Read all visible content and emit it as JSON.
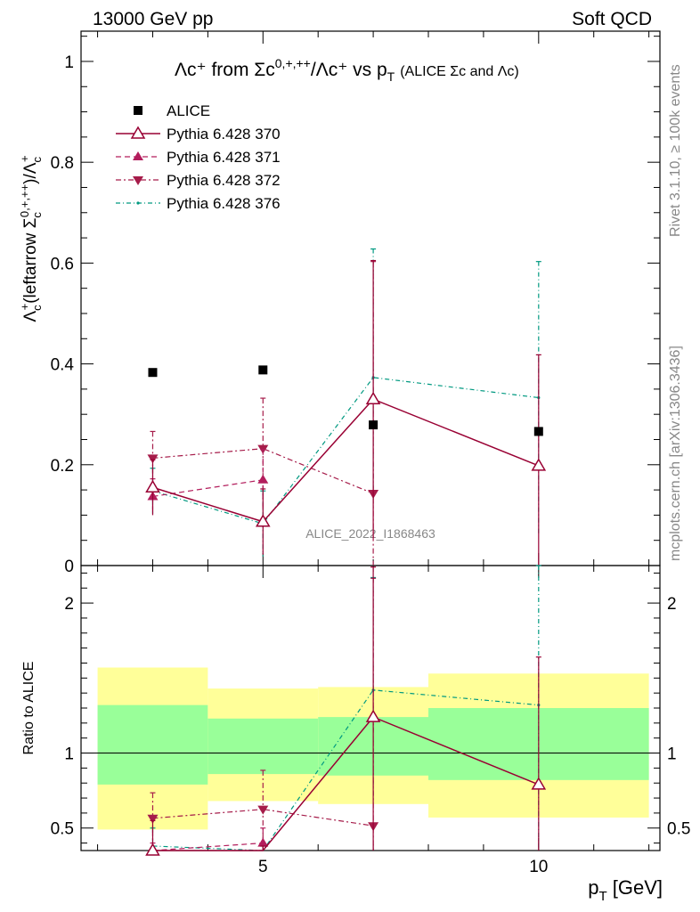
{
  "header": {
    "left": "13000 GeV pp",
    "right": "Soft QCD"
  },
  "side_text": {
    "rivet": "Rivet 3.1.10, ≥ 100k events",
    "mcplots": "mcplots.cern.ch [arXiv:1306.3436]"
  },
  "watermark": "ALICE_2022_I1868463",
  "colors": {
    "alice": "#000000",
    "p370": "#990033",
    "p371": "#b31d5c",
    "p372": "#a61c4a",
    "p376": "#009980",
    "band_inner": "#99ff99",
    "band_outer": "#ffff99"
  },
  "chart_data": [
    {
      "type": "line",
      "title": "Λc⁺ from Σc^{0,+,++}/Λc⁺ vs p_T (ALICE Σc and Λc)",
      "title_parts": {
        "main": "Λc⁺ from Σc",
        "sup": "0,+,++",
        "mid": "/Λc⁺ vs p",
        "sub": "T",
        "small": "(ALICE Σc and Λc)"
      },
      "xlabel": "p_T [GeV]",
      "xlabel_parts": {
        "main": "p",
        "sub": "T",
        "rest": " [GeV]"
      },
      "ylabel": "Λc⁺(leftarrow Σc^{0,+,++})/Λc⁺",
      "ylabel_parts": {
        "a": "Λ",
        "a_sub": "c",
        "a_sup": "+",
        "b": "(leftarrow Σ",
        "b_sub": "c",
        "b_sup": "0,+,++",
        "c": ")/Λ",
        "c_sub": "c",
        "c_sup": "+"
      },
      "xlim": [
        1.7,
        12.2
      ],
      "ylim": [
        0,
        1.06
      ],
      "yticks": [
        0,
        0.2,
        0.4,
        0.6,
        0.8,
        1
      ],
      "ytick_labels": [
        "0",
        "0.2",
        "0.4",
        "0.6",
        "0.8",
        "1"
      ],
      "xticks": [
        5,
        10
      ],
      "grid": false,
      "legend": "top-left",
      "legend_labels": [
        "ALICE",
        "Pythia 6.428 370",
        "Pythia 6.428 371",
        "Pythia 6.428 372",
        "Pythia 6.428 376"
      ],
      "series": [
        {
          "name": "ALICE",
          "x": [
            3,
            5,
            7,
            10
          ],
          "y": [
            0.383,
            0.388,
            0.279,
            0.266
          ],
          "err": [
            0,
            0,
            0,
            0
          ]
        },
        {
          "name": "Pythia 6.428 370",
          "x": [
            3,
            5,
            7,
            10
          ],
          "y": [
            0.155,
            0.087,
            0.33,
            0.198
          ],
          "err": [
            0.055,
            0.065,
            0.275,
            0.22
          ]
        },
        {
          "name": "Pythia 6.428 371",
          "x": [
            3,
            5,
            7,
            10
          ],
          "y": [
            0.137,
            0.17,
            null,
            null
          ],
          "err": [
            0.035,
            0.06,
            0,
            0
          ]
        },
        {
          "name": "Pythia 6.428 372",
          "x": [
            3,
            5,
            7
          ],
          "y": [
            0.213,
            0.232,
            0.143
          ],
          "err": [
            0.053,
            0.1,
            0.46
          ]
        },
        {
          "name": "Pythia 6.428 376",
          "x": [
            3,
            5,
            7,
            10
          ],
          "y": [
            0.148,
            0.083,
            0.373,
            0.333
          ],
          "err": [
            0.045,
            0.065,
            0.255,
            0.27
          ]
        }
      ]
    },
    {
      "type": "line",
      "ylabel": "Ratio to ALICE",
      "xlabel": "p_T [GeV]",
      "xlim": [
        1.7,
        12.2
      ],
      "ylim": [
        0.35,
        2.25
      ],
      "yticks": [
        0.5,
        1,
        2
      ],
      "ytick_labels": [
        "0.5",
        "1",
        "2"
      ],
      "xticks": [
        5,
        10
      ],
      "xtick_labels": [
        "5",
        "10"
      ],
      "bins": [
        {
          "lo": 2,
          "hi": 4,
          "inner": [
            0.79,
            1.32
          ],
          "outer": [
            0.49,
            1.57
          ]
        },
        {
          "lo": 4,
          "hi": 6,
          "inner": [
            0.86,
            1.23
          ],
          "outer": [
            0.68,
            1.43
          ]
        },
        {
          "lo": 6,
          "hi": 8,
          "inner": [
            0.85,
            1.24
          ],
          "outer": [
            0.66,
            1.44
          ]
        },
        {
          "lo": 8,
          "hi": 12,
          "inner": [
            0.82,
            1.3
          ],
          "outer": [
            0.57,
            1.53
          ]
        }
      ],
      "series": [
        {
          "name": "Pythia 6.428 370",
          "x": [
            3,
            5,
            7,
            10
          ],
          "y": [
            0.35,
            0.22,
            1.24,
            0.79
          ],
          "err": [
            0.2,
            0.16,
            1.0,
            0.85
          ]
        },
        {
          "name": "Pythia 6.428 371",
          "x": [
            3,
            5
          ],
          "y": [
            0.3,
            0.4
          ],
          "err": [
            0.1,
            0.1
          ]
        },
        {
          "name": "Pythia 6.428 372",
          "x": [
            3,
            5,
            7
          ],
          "y": [
            0.565,
            0.625,
            0.515
          ],
          "err": [
            0.17,
            0.26,
            1.65
          ]
        },
        {
          "name": "Pythia 6.428 376",
          "x": [
            3,
            5,
            7,
            10
          ],
          "y": [
            0.38,
            0.21,
            1.42,
            1.32
          ],
          "err": [
            0.12,
            0.17,
            0.75,
            0.95
          ]
        }
      ]
    }
  ]
}
